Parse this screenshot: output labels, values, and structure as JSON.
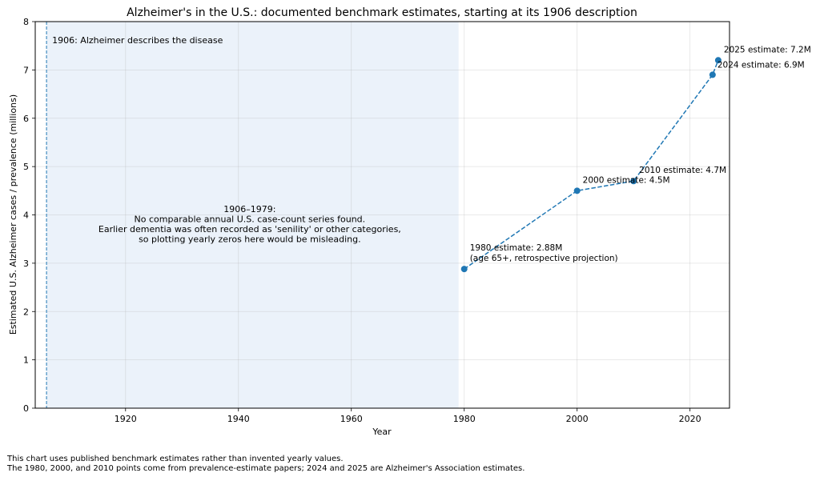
{
  "chart_data": {
    "type": "line",
    "title": "Alzheimer's in the U.S.: documented benchmark estimates, starting at its 1906 description",
    "xlabel": "Year",
    "ylabel": "Estimated U.S. Alzheimer cases / prevalence (millions)",
    "xlim": [
      1904,
      2027
    ],
    "ylim": [
      0,
      8
    ],
    "xticks": [
      1920,
      1940,
      1960,
      1980,
      2000,
      2020
    ],
    "yticks": [
      0,
      1,
      2,
      3,
      4,
      5,
      6,
      7,
      8
    ],
    "grid": true,
    "series": [
      {
        "name": "Benchmark estimates",
        "color": "#1f77b4",
        "linestyle": "dashed",
        "x": [
          1980,
          2000,
          2010,
          2024,
          2025
        ],
        "y": [
          2.88,
          4.5,
          4.7,
          6.9,
          7.2
        ]
      }
    ],
    "point_labels": [
      {
        "lines": [
          "1980 estimate: 2.88M",
          "(age 65+, retrospective projection)"
        ]
      },
      {
        "lines": [
          "2000 estimate: 4.5M"
        ]
      },
      {
        "lines": [
          "2010 estimate: 4.7M"
        ]
      },
      {
        "lines": [
          "2024 estimate: 6.9M"
        ]
      },
      {
        "lines": [
          "2025 estimate: 7.2M"
        ]
      }
    ],
    "shaded_region": {
      "x_start": 1906,
      "x_end": 1979,
      "color": "#dbe8f5"
    },
    "vertical_line": {
      "x": 1906,
      "label": "1906: Alzheimer describes the disease"
    },
    "region_annotation": {
      "lines": [
        "1906–1979:",
        "No comparable annual U.S. case-count series found.",
        "Earlier dementia was often recorded as 'senility' or other categories,",
        "so plotting yearly zeros here would be misleading."
      ],
      "x": 1942,
      "y": 4.0
    }
  },
  "footnote": {
    "line1": "This chart uses published benchmark estimates rather than invented yearly values.",
    "line2": "The 1980, 2000, and 2010 points come from prevalence-estimate papers; 2024 and 2025 are Alzheimer's Association estimates."
  }
}
